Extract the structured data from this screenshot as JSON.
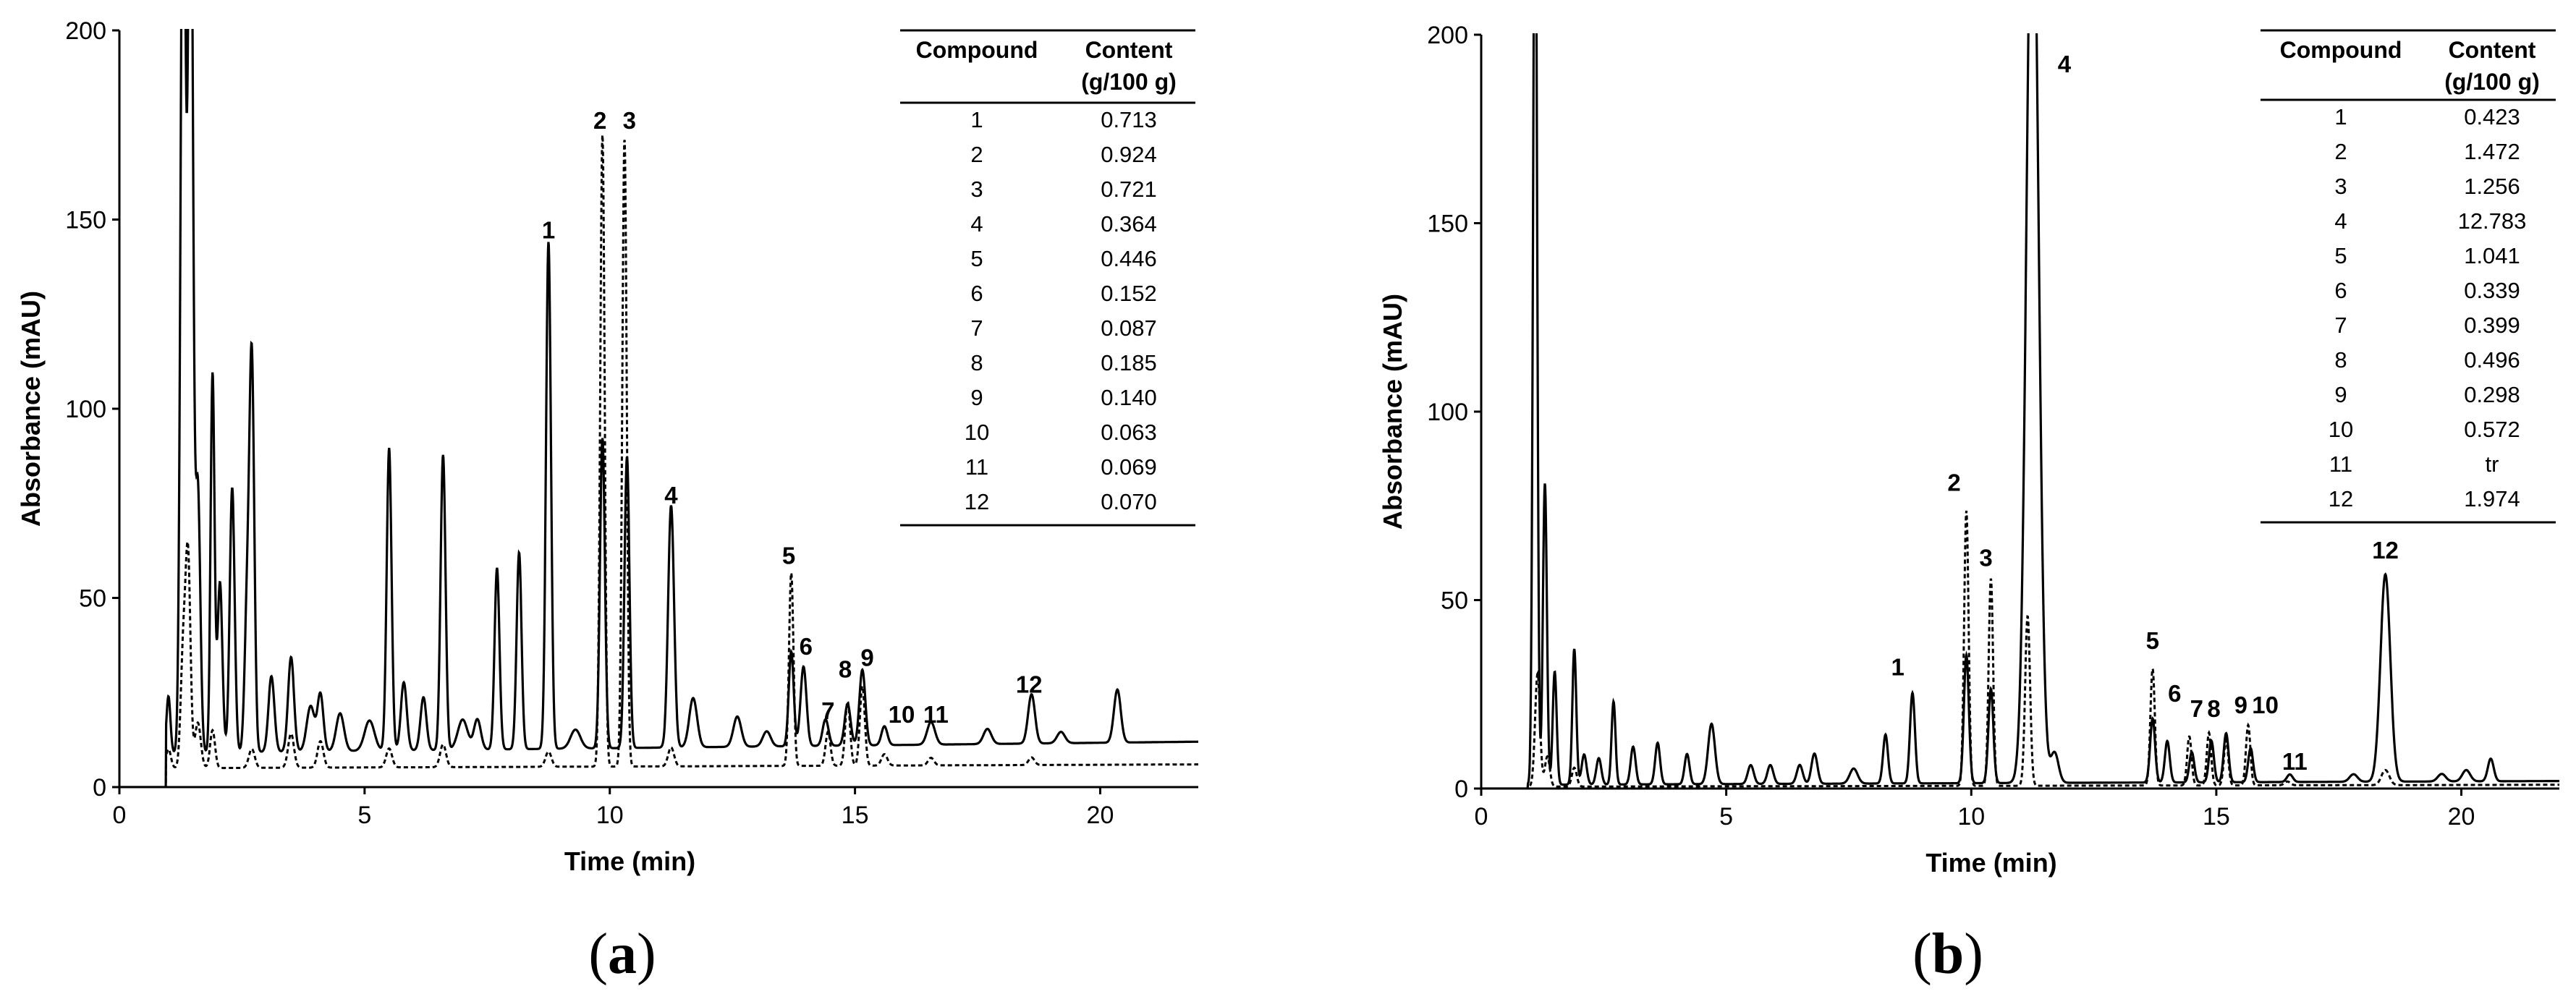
{
  "chart_data": [
    {
      "type": "line",
      "panel": "a",
      "panel_label": "a",
      "xlabel": "Time (min)",
      "ylabel": "Absorbance (mAU)",
      "xlim": [
        0,
        22
      ],
      "ylim": [
        0,
        200
      ],
      "x_ticks": [
        0,
        5,
        10,
        15,
        20
      ],
      "y_ticks": [
        0,
        50,
        100,
        150,
        200
      ],
      "baseline_solid": 9,
      "baseline_dashed": 5,
      "series": [
        {
          "name": "solid",
          "style": "solid",
          "baseline_end": 12,
          "peaks": [
            [
              1.0,
              15,
              0.04
            ],
            [
              1.3,
              260,
              0.05
            ],
            [
              1.45,
              260,
              0.05
            ],
            [
              1.6,
              70,
              0.05
            ],
            [
              1.9,
              100,
              0.04
            ],
            [
              2.05,
              45,
              0.05
            ],
            [
              2.3,
              70,
              0.05
            ],
            [
              2.6,
              35,
              0.05
            ],
            [
              2.7,
              103,
              0.05
            ],
            [
              3.1,
              20,
              0.06
            ],
            [
              3.5,
              25,
              0.06
            ],
            [
              3.9,
              12,
              0.08
            ],
            [
              4.1,
              15,
              0.06
            ],
            [
              4.5,
              10,
              0.08
            ],
            [
              5.1,
              8,
              0.1
            ],
            [
              5.5,
              80,
              0.05
            ],
            [
              5.8,
              18,
              0.06
            ],
            [
              6.2,
              14,
              0.06
            ],
            [
              6.6,
              78,
              0.05
            ],
            [
              7.0,
              8,
              0.1
            ],
            [
              7.3,
              8,
              0.07
            ],
            [
              7.7,
              48,
              0.05
            ],
            [
              8.15,
              52,
              0.05
            ],
            [
              8.75,
              134,
              0.05
            ],
            [
              9.3,
              5,
              0.1
            ],
            [
              9.85,
              82,
              0.05
            ],
            [
              10.35,
              77,
              0.05
            ],
            [
              11.25,
              64,
              0.06
            ],
            [
              11.7,
              13,
              0.08
            ],
            [
              12.6,
              8,
              0.08
            ],
            [
              13.2,
              4,
              0.08
            ],
            [
              13.7,
              25,
              0.05
            ],
            [
              13.95,
              21,
              0.06
            ],
            [
              14.4,
              7,
              0.06
            ],
            [
              14.85,
              11,
              0.06
            ],
            [
              15.15,
              20,
              0.06
            ],
            [
              15.6,
              5,
              0.06
            ],
            [
              16.55,
              6,
              0.08
            ],
            [
              17.7,
              4,
              0.08
            ],
            [
              18.6,
              13,
              0.07
            ],
            [
              19.2,
              3,
              0.08
            ],
            [
              20.35,
              14,
              0.07
            ]
          ]
        },
        {
          "name": "dashed",
          "style": "dashed",
          "baseline_end": 6,
          "peaks": [
            [
              1.0,
              5,
              0.05
            ],
            [
              1.3,
              30,
              0.05
            ],
            [
              1.4,
              55,
              0.05
            ],
            [
              1.6,
              12,
              0.06
            ],
            [
              1.9,
              10,
              0.05
            ],
            [
              2.7,
              5,
              0.06
            ],
            [
              3.5,
              9,
              0.06
            ],
            [
              4.1,
              7,
              0.06
            ],
            [
              5.5,
              5,
              0.06
            ],
            [
              6.6,
              6,
              0.06
            ],
            [
              8.75,
              4,
              0.06
            ],
            [
              9.85,
              167,
              0.045
            ],
            [
              10.3,
              166,
              0.045
            ],
            [
              11.25,
              5,
              0.06
            ],
            [
              13.7,
              51,
              0.045
            ],
            [
              14.45,
              9,
              0.05
            ],
            [
              14.85,
              17,
              0.05
            ],
            [
              15.15,
              21,
              0.05
            ],
            [
              15.6,
              3,
              0.06
            ],
            [
              16.55,
              2,
              0.06
            ],
            [
              18.6,
              2,
              0.06
            ]
          ]
        }
      ],
      "peak_labels": [
        {
          "text": "1",
          "x": 8.75,
          "y": 145
        },
        {
          "text": "2",
          "x": 9.8,
          "y": 174
        },
        {
          "text": "3",
          "x": 10.4,
          "y": 174
        },
        {
          "text": "4",
          "x": 11.25,
          "y": 75
        },
        {
          "text": "5",
          "x": 13.65,
          "y": 59
        },
        {
          "text": "6",
          "x": 14.0,
          "y": 35
        },
        {
          "text": "7",
          "x": 14.45,
          "y": 18
        },
        {
          "text": "8",
          "x": 14.8,
          "y": 29
        },
        {
          "text": "9",
          "x": 15.25,
          "y": 32
        },
        {
          "text": "10",
          "x": 15.95,
          "y": 17
        },
        {
          "text": "11",
          "x": 16.65,
          "y": 17
        },
        {
          "text": "12",
          "x": 18.55,
          "y": 25
        }
      ],
      "table": {
        "headers": [
          [
            "Compound"
          ],
          [
            "Content",
            "(g/100 g)"
          ]
        ],
        "rows": [
          [
            "1",
            "0.713"
          ],
          [
            "2",
            "0.924"
          ],
          [
            "3",
            "0.721"
          ],
          [
            "4",
            "0.364"
          ],
          [
            "5",
            "0.446"
          ],
          [
            "6",
            "0.152"
          ],
          [
            "7",
            "0.087"
          ],
          [
            "8",
            "0.185"
          ],
          [
            "9",
            "0.140"
          ],
          [
            "10",
            "0.063"
          ],
          [
            "11",
            "0.069"
          ],
          [
            "12",
            "0.070"
          ]
        ]
      }
    },
    {
      "type": "line",
      "panel": "b",
      "panel_label": "b",
      "xlabel": "Time (min)",
      "ylabel": "Absorbance (mAU)",
      "xlim": [
        0,
        22
      ],
      "ylim": [
        0,
        200
      ],
      "x_ticks": [
        0,
        5,
        10,
        15,
        20
      ],
      "y_ticks": [
        0,
        50,
        100,
        150,
        200
      ],
      "baseline_solid": 1,
      "baseline_dashed": 0.5,
      "series": [
        {
          "name": "solid",
          "style": "solid",
          "baseline_end": 2,
          "peaks": [
            [
              1.1,
              260,
              0.04
            ],
            [
              1.3,
              80,
              0.04
            ],
            [
              1.5,
              30,
              0.04
            ],
            [
              1.9,
              36,
              0.04
            ],
            [
              2.1,
              8,
              0.05
            ],
            [
              2.4,
              7,
              0.05
            ],
            [
              2.7,
              22,
              0.04
            ],
            [
              3.1,
              10,
              0.05
            ],
            [
              3.6,
              11,
              0.05
            ],
            [
              4.2,
              8,
              0.05
            ],
            [
              4.7,
              16,
              0.07
            ],
            [
              5.5,
              5,
              0.06
            ],
            [
              5.9,
              5,
              0.06
            ],
            [
              6.5,
              5,
              0.06
            ],
            [
              6.8,
              8,
              0.06
            ],
            [
              7.6,
              4,
              0.08
            ],
            [
              8.25,
              13,
              0.05
            ],
            [
              8.8,
              24,
              0.05
            ],
            [
              9.9,
              34,
              0.05
            ],
            [
              10.4,
              25,
              0.05
            ],
            [
              11.25,
              255,
              0.12
            ],
            [
              11.7,
              8,
              0.08
            ],
            [
              13.7,
              17,
              0.05
            ],
            [
              14.0,
              11,
              0.05
            ],
            [
              14.5,
              8,
              0.05
            ],
            [
              14.9,
              11,
              0.05
            ],
            [
              15.2,
              13,
              0.05
            ],
            [
              15.7,
              9,
              0.05
            ],
            [
              16.5,
              2,
              0.06
            ],
            [
              17.8,
              2,
              0.08
            ],
            [
              18.45,
              55,
              0.1
            ],
            [
              19.6,
              2,
              0.08
            ],
            [
              20.1,
              3,
              0.08
            ],
            [
              20.6,
              6,
              0.06
            ]
          ]
        },
        {
          "name": "dashed",
          "style": "dashed",
          "baseline_end": 1,
          "peaks": [
            [
              1.15,
              30,
              0.05
            ],
            [
              1.35,
              8,
              0.05
            ],
            [
              1.9,
              5,
              0.05
            ],
            [
              9.9,
              73,
              0.045
            ],
            [
              10.4,
              55,
              0.045
            ],
            [
              11.15,
              45,
              0.05
            ],
            [
              13.7,
              31,
              0.045
            ],
            [
              14.45,
              13,
              0.045
            ],
            [
              14.85,
              14,
              0.045
            ],
            [
              15.2,
              12,
              0.045
            ],
            [
              15.65,
              16,
              0.045
            ],
            [
              16.45,
              1,
              0.06
            ],
            [
              18.45,
              4,
              0.08
            ]
          ]
        }
      ],
      "peak_labels": [
        {
          "text": "1",
          "x": 8.5,
          "y": 30
        },
        {
          "text": "2",
          "x": 9.65,
          "y": 79
        },
        {
          "text": "3",
          "x": 10.3,
          "y": 59
        },
        {
          "text": "4",
          "x": 11.9,
          "y": 190
        },
        {
          "text": "5",
          "x": 13.7,
          "y": 37
        },
        {
          "text": "6",
          "x": 14.15,
          "y": 23
        },
        {
          "text": "7",
          "x": 14.6,
          "y": 19
        },
        {
          "text": "8",
          "x": 14.95,
          "y": 19
        },
        {
          "text": "9",
          "x": 15.5,
          "y": 20
        },
        {
          "text": "10",
          "x": 16.0,
          "y": 20
        },
        {
          "text": "11",
          "x": 16.6,
          "y": 5
        },
        {
          "text": "12",
          "x": 18.45,
          "y": 61
        }
      ],
      "table": {
        "headers": [
          [
            "Compound"
          ],
          [
            "Content",
            "(g/100 g)"
          ]
        ],
        "rows": [
          [
            "1",
            "0.423"
          ],
          [
            "2",
            "1.472"
          ],
          [
            "3",
            "1.256"
          ],
          [
            "4",
            "12.783"
          ],
          [
            "5",
            "1.041"
          ],
          [
            "6",
            "0.339"
          ],
          [
            "7",
            "0.399"
          ],
          [
            "8",
            "0.496"
          ],
          [
            "9",
            "0.298"
          ],
          [
            "10",
            "0.572"
          ],
          [
            "11",
            "tr"
          ],
          [
            "12",
            "1.974"
          ]
        ]
      }
    }
  ]
}
